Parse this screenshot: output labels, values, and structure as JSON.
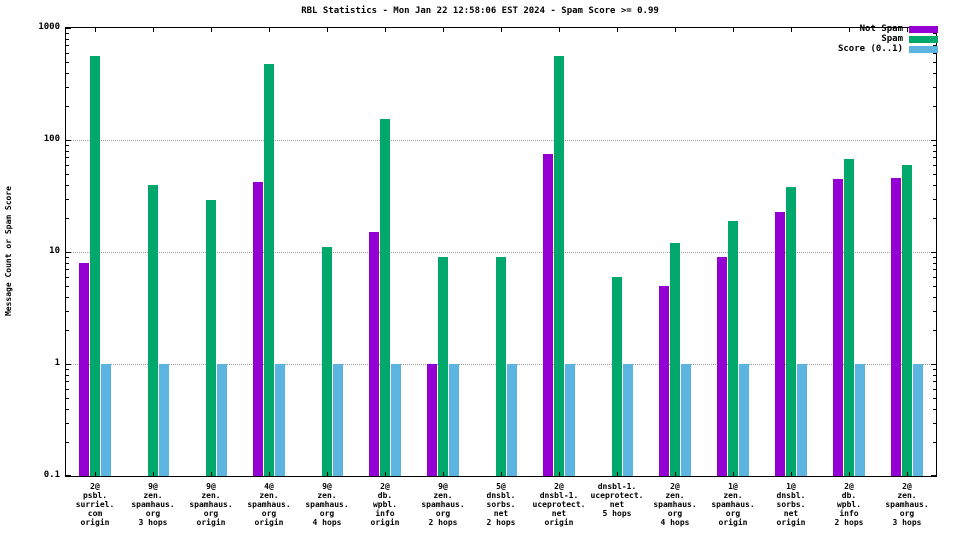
{
  "title": "RBL Statistics - Mon Jan 22 12:58:06 EST 2024 - Spam Score >= 0.99",
  "y_axis_label": "Message Count or Spam Score",
  "chart_data": {
    "type": "bar",
    "y_scale": "log",
    "ylim": [
      0.1,
      1000
    ],
    "grid": "horizontal dotted at decades",
    "legend_position": "top-right",
    "yticks": [
      {
        "label": "0.1",
        "value": 0.1
      },
      {
        "label": "1",
        "value": 1
      },
      {
        "label": "10",
        "value": 10
      },
      {
        "label": "100",
        "value": 100
      },
      {
        "label": "1000",
        "value": 1000
      }
    ],
    "categories": [
      [
        "2@",
        "psbl.",
        "surriel.",
        "com",
        "origin"
      ],
      [
        "9@",
        "zen.",
        "spamhaus.",
        "org",
        "3 hops"
      ],
      [
        "9@",
        "zen.",
        "spamhaus.",
        "org",
        "origin"
      ],
      [
        "4@",
        "zen.",
        "spamhaus.",
        "org",
        "origin"
      ],
      [
        "9@",
        "zen.",
        "spamhaus.",
        "org",
        "4 hops"
      ],
      [
        "2@",
        "db.",
        "wpbl.",
        "info",
        "origin"
      ],
      [
        "9@",
        "zen.",
        "spamhaus.",
        "org",
        "2 hops"
      ],
      [
        "5@",
        "dnsbl.",
        "sorbs.",
        "net",
        "2 hops"
      ],
      [
        "2@",
        "dnsbl-1.",
        "uceprotect.",
        "net",
        "origin"
      ],
      [
        "dnsbl-1.",
        "uceprotect.",
        "net",
        "5 hops"
      ],
      [
        "2@",
        "zen.",
        "spamhaus.",
        "org",
        "4 hops"
      ],
      [
        "1@",
        "zen.",
        "spamhaus.",
        "org",
        "origin"
      ],
      [
        "1@",
        "dnsbl.",
        "sorbs.",
        "net",
        "origin"
      ],
      [
        "2@",
        "db.",
        "wpbl.",
        "info",
        "2 hops"
      ],
      [
        "2@",
        "zen.",
        "spamhaus.",
        "org",
        "3 hops"
      ]
    ],
    "series": [
      {
        "name": "Not Spam",
        "color": "#9400d3",
        "values": [
          8,
          null,
          null,
          42,
          null,
          15,
          1,
          null,
          75,
          null,
          5,
          9,
          23,
          45,
          46
        ]
      },
      {
        "name": "Spam",
        "color": "#00a86b",
        "values": [
          560,
          40,
          29,
          480,
          11,
          155,
          9,
          9,
          560,
          6,
          12,
          19,
          38,
          68,
          60
        ]
      },
      {
        "name": "Score (0..1)",
        "color": "#5bb5e0",
        "values": [
          1,
          1,
          1,
          1,
          1,
          1,
          1,
          1,
          1,
          1,
          1,
          1,
          1,
          1,
          1
        ]
      }
    ]
  }
}
